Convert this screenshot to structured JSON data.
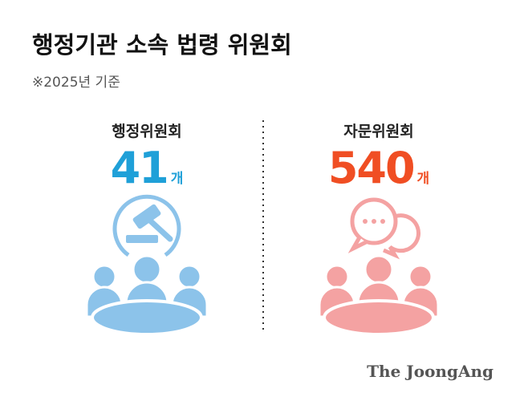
{
  "header": {
    "title": "행정기관 소속 법령 위원회",
    "subtitle": "※2025년 기준"
  },
  "panels": [
    {
      "label": "행정위원회",
      "value": 41,
      "unit": "개"
    },
    {
      "label": "자문위원회",
      "value": 540,
      "unit": "개"
    }
  ],
  "footer": {
    "logo": "The JoongAng"
  }
}
